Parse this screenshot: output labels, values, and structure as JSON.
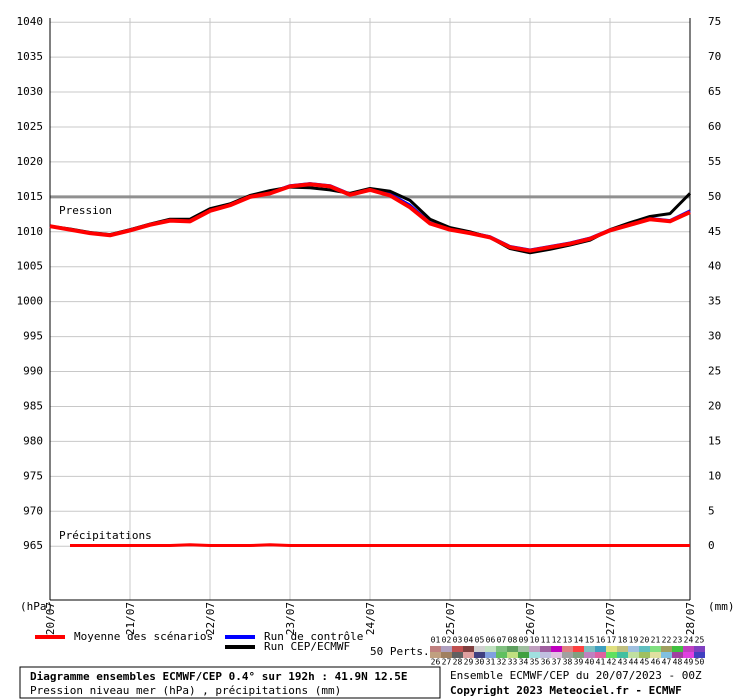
{
  "chart_data": {
    "type": "line",
    "pressure_label": "Pression",
    "ylabel": "(hPa)",
    "y2label": "(mm)",
    "x": [
      0,
      6,
      12,
      18,
      24,
      30,
      36,
      42,
      48,
      54,
      60,
      66,
      72,
      78,
      84,
      90,
      96,
      102,
      108,
      114,
      120,
      126,
      132,
      138,
      144,
      150,
      156,
      162,
      168,
      174,
      180,
      186,
      192
    ],
    "xlim": [
      0,
      192
    ],
    "xticks": [
      {
        "value": 0,
        "label": "20/07"
      },
      {
        "value": 24,
        "label": "21/07"
      },
      {
        "value": 48,
        "label": "22/07"
      },
      {
        "value": 72,
        "label": "23/07"
      },
      {
        "value": 96,
        "label": "24/07"
      },
      {
        "value": 120,
        "label": "25/07"
      },
      {
        "value": 144,
        "label": "26/07"
      },
      {
        "value": 168,
        "label": "27/07"
      },
      {
        "value": 192,
        "label": "28/07"
      }
    ],
    "ylim": [
      957.3,
      1040.6
    ],
    "yticks": [
      965,
      970,
      975,
      980,
      985,
      990,
      995,
      1000,
      1005,
      1010,
      1015,
      1020,
      1025,
      1030,
      1035,
      1040
    ],
    "y2lim": [
      -7.7,
      75.6
    ],
    "y2ticks": [
      0,
      5,
      10,
      15,
      20,
      25,
      30,
      35,
      40,
      45,
      50,
      55,
      60,
      65,
      70,
      75
    ],
    "reference_line": 1015,
    "grid": true,
    "series": [
      {
        "name": "Run de contrôle",
        "color": "#0000ff",
        "values": [
          1010.8,
          1010.3,
          1009.8,
          1009.5,
          1010.3,
          1011.0,
          1011.7,
          1011.6,
          1013.1,
          1013.9,
          1015.1,
          1015.6,
          1016.6,
          1016.9,
          1016.6,
          1015.4,
          1016.1,
          1015.4,
          1013.8,
          1011.3,
          1010.4,
          1009.9,
          1009.3,
          1007.9,
          1007.4,
          1007.9,
          1008.4,
          1009.1,
          1010.3,
          1011.1,
          1011.9,
          1011.6,
          1013.0
        ]
      },
      {
        "name": "Run CEP/ECMWF",
        "color": "#000000",
        "values": [
          1010.8,
          1010.4,
          1009.9,
          1009.6,
          1010.3,
          1011.1,
          1011.8,
          1011.8,
          1013.3,
          1014.0,
          1015.2,
          1015.9,
          1016.4,
          1016.3,
          1016.0,
          1015.5,
          1016.2,
          1015.8,
          1014.5,
          1011.8,
          1010.6,
          1010.0,
          1009.2,
          1007.6,
          1007.0,
          1007.5,
          1008.1,
          1008.8,
          1010.3,
          1011.3,
          1012.2,
          1012.6,
          1015.5
        ]
      },
      {
        "name": "Moyenne des scénarios",
        "color": "#ff0000",
        "values": [
          1010.8,
          1010.3,
          1009.8,
          1009.5,
          1010.2,
          1011.0,
          1011.6,
          1011.5,
          1013.0,
          1013.8,
          1015.0,
          1015.5,
          1016.5,
          1016.8,
          1016.5,
          1015.3,
          1016.0,
          1015.2,
          1013.5,
          1011.2,
          1010.3,
          1009.8,
          1009.2,
          1007.8,
          1007.3,
          1007.8,
          1008.3,
          1009.0,
          1010.2,
          1011.0,
          1011.8,
          1011.5,
          1012.8
        ]
      }
    ],
    "precipitation": {
      "label": "Précipitations",
      "color": "#ff0000",
      "axis": "y2",
      "values": [
        null,
        0.1,
        0.1,
        0.1,
        0.1,
        0.1,
        0.1,
        0.2,
        0.1,
        0.1,
        0.1,
        0.2,
        0.1,
        0.1,
        0.1,
        0.1,
        0.1,
        0.1,
        0.1,
        0.1,
        0.1,
        0.1,
        0.1,
        0.1,
        0.1,
        0.1,
        0.1,
        0.1,
        0.1,
        0.1,
        0.1,
        0.1,
        0.1
      ]
    },
    "perturbations": {
      "label": "50 Perts.",
      "items": [
        {
          "name": "01",
          "color": "#c08080"
        },
        {
          "name": "02",
          "color": "#b0a0c0"
        },
        {
          "name": "03",
          "color": "#c05050"
        },
        {
          "name": "04",
          "color": "#804040"
        },
        {
          "name": "05",
          "color": "#d0d0d0"
        },
        {
          "name": "06",
          "color": "#c0e0c0"
        },
        {
          "name": "07",
          "color": "#80c080"
        },
        {
          "name": "08",
          "color": "#60a060"
        },
        {
          "name": "09",
          "color": "#a0c0a0"
        },
        {
          "name": "10",
          "color": "#c0a0c0"
        },
        {
          "name": "11",
          "color": "#a060a0"
        },
        {
          "name": "12",
          "color": "#c000c0"
        },
        {
          "name": "13",
          "color": "#e08080"
        },
        {
          "name": "14",
          "color": "#ff4040"
        },
        {
          "name": "15",
          "color": "#80c0c0"
        },
        {
          "name": "16",
          "color": "#40a0c0"
        },
        {
          "name": "17",
          "color": "#e0e080"
        },
        {
          "name": "18",
          "color": "#c0c080"
        },
        {
          "name": "19",
          "color": "#a0c0e0"
        },
        {
          "name": "20",
          "color": "#60c0c0"
        },
        {
          "name": "21",
          "color": "#80e080"
        },
        {
          "name": "22",
          "color": "#a0a060"
        },
        {
          "name": "23",
          "color": "#40c040"
        },
        {
          "name": "24",
          "color": "#c040c0"
        },
        {
          "name": "25",
          "color": "#8040c0"
        },
        {
          "name": "26",
          "color": "#c0a080"
        },
        {
          "name": "27",
          "color": "#a08060"
        },
        {
          "name": "28",
          "color": "#606060"
        },
        {
          "name": "29",
          "color": "#e0a0a0"
        },
        {
          "name": "30",
          "color": "#404080"
        },
        {
          "name": "31",
          "color": "#80a0e0"
        },
        {
          "name": "32",
          "color": "#60c060"
        },
        {
          "name": "33",
          "color": "#c0e080"
        },
        {
          "name": "34",
          "color": "#40a040"
        },
        {
          "name": "35",
          "color": "#a0e0e0"
        },
        {
          "name": "36",
          "color": "#c0c0e0"
        },
        {
          "name": "37",
          "color": "#e0c0e0"
        },
        {
          "name": "38",
          "color": "#a0a0a0"
        },
        {
          "name": "39",
          "color": "#80a080"
        },
        {
          "name": "40",
          "color": "#c080c0"
        },
        {
          "name": "41",
          "color": "#e060a0"
        },
        {
          "name": "42",
          "color": "#60e060"
        },
        {
          "name": "43",
          "color": "#40c0a0"
        },
        {
          "name": "44",
          "color": "#c0e0a0"
        },
        {
          "name": "45",
          "color": "#a0c060"
        },
        {
          "name": "46",
          "color": "#e0e0a0"
        },
        {
          "name": "47",
          "color": "#80c0e0"
        },
        {
          "name": "48",
          "color": "#a040a0"
        },
        {
          "name": "49",
          "color": "#e040e0"
        },
        {
          "name": "50",
          "color": "#4040c0"
        }
      ]
    },
    "footer": {
      "title": "Diagramme ensembles ECMWF/CEP 0.4° sur 192h : 41.9N 12.5E",
      "subtitle": "Pression niveau mer (hPa) , précipitations (mm)",
      "run": "Ensemble ECMWF/CEP du 20/07/2023 - 00Z",
      "copyright": "Copyright 2023 Meteociel.fr - ECMWF"
    }
  }
}
